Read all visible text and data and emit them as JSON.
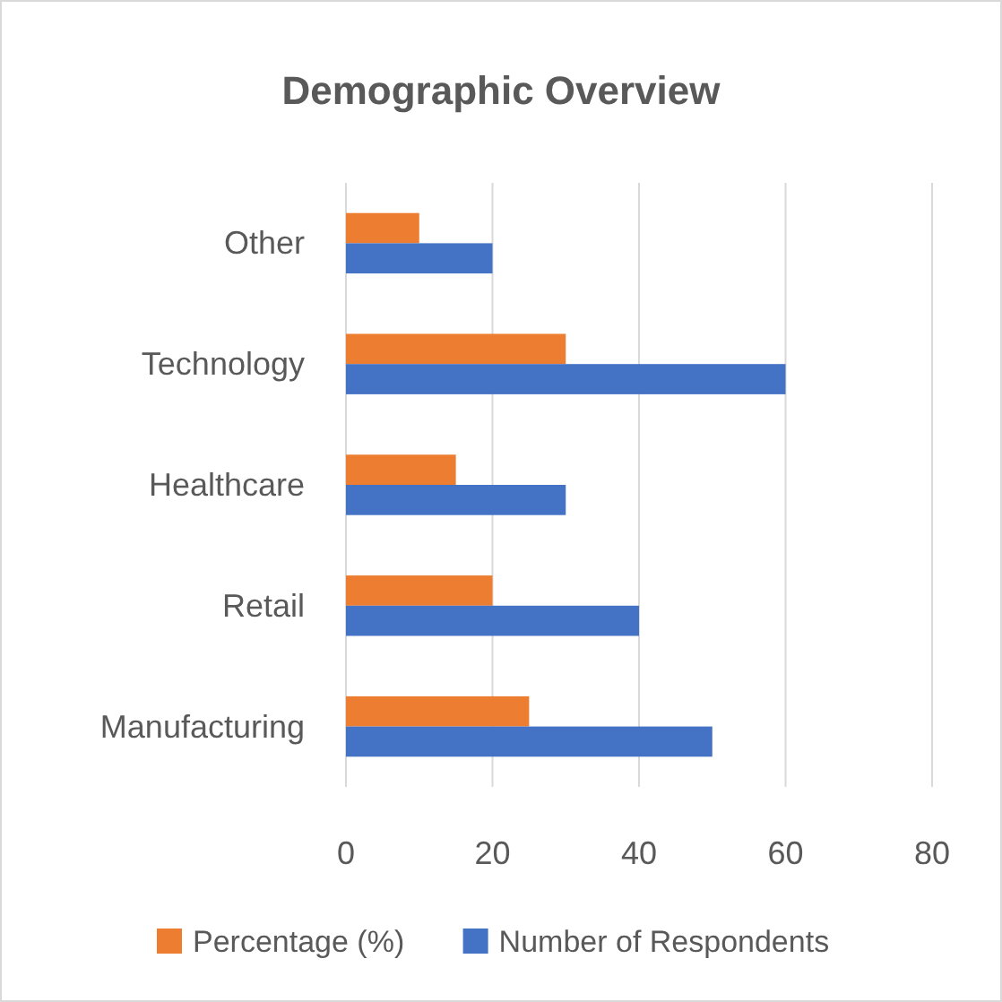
{
  "chart_data": {
    "type": "bar",
    "orientation": "horizontal",
    "title": "Demographic Overview",
    "categories": [
      "Other",
      "Technology",
      "Healthcare",
      "Retail",
      "Manufacturing"
    ],
    "series": [
      {
        "name": "Percentage (%)",
        "color": "#ed7d31",
        "values": [
          10,
          30,
          15,
          20,
          25
        ]
      },
      {
        "name": "Number of Respondents",
        "color": "#4472c4",
        "values": [
          20,
          60,
          30,
          40,
          50
        ]
      }
    ],
    "xlim": [
      0,
      80
    ],
    "xticks": [
      0,
      20,
      40,
      60,
      80
    ],
    "grid": "x",
    "legend": "bottom"
  }
}
